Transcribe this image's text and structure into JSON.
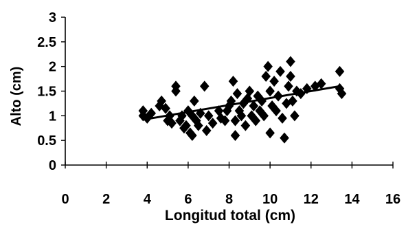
{
  "chart_data": {
    "type": "scatter",
    "title": "",
    "xlabel": "Longitud total (cm)",
    "ylabel": "Alto (cm)",
    "xlim": [
      0,
      16
    ],
    "ylim": [
      0,
      3
    ],
    "x_ticks": [
      0,
      2,
      4,
      6,
      8,
      10,
      12,
      14,
      16
    ],
    "y_ticks": [
      0,
      0.5,
      1,
      1.5,
      2,
      2.5,
      3
    ],
    "x_tick_labels": [
      "0",
      "2",
      "4",
      "6",
      "8",
      "10",
      "12",
      "14",
      "16"
    ],
    "y_tick_labels": [
      "0",
      "0.5",
      "1",
      "1.5",
      "2",
      "2.5",
      "3"
    ],
    "grid": false,
    "legend": "none",
    "marker": "diamond",
    "marker_color": "#000000",
    "trendline": {
      "x": [
        3.8,
        13.4
      ],
      "y": [
        0.92,
        1.6
      ]
    },
    "points": [
      [
        3.8,
        1.0
      ],
      [
        3.8,
        1.1
      ],
      [
        4.0,
        0.95
      ],
      [
        4.2,
        1.05
      ],
      [
        4.6,
        1.2
      ],
      [
        4.7,
        1.3
      ],
      [
        4.9,
        1.15
      ],
      [
        5.0,
        0.9
      ],
      [
        5.1,
        1.0
      ],
      [
        5.2,
        0.85
      ],
      [
        5.4,
        1.5
      ],
      [
        5.4,
        1.6
      ],
      [
        5.6,
        0.9
      ],
      [
        5.7,
        1.0
      ],
      [
        5.8,
        0.75
      ],
      [
        5.9,
        0.8
      ],
      [
        6.0,
        1.1
      ],
      [
        6.1,
        0.65
      ],
      [
        6.2,
        0.6
      ],
      [
        6.2,
        1.0
      ],
      [
        6.3,
        1.3
      ],
      [
        6.4,
        0.9
      ],
      [
        6.5,
        0.8
      ],
      [
        6.6,
        1.05
      ],
      [
        6.8,
        1.6
      ],
      [
        6.9,
        0.7
      ],
      [
        7.0,
        1.0
      ],
      [
        7.2,
        0.85
      ],
      [
        7.5,
        1.1
      ],
      [
        7.6,
        0.95
      ],
      [
        7.8,
        0.9
      ],
      [
        7.9,
        1.1
      ],
      [
        8.0,
        1.2
      ],
      [
        8.1,
        1.3
      ],
      [
        8.2,
        1.7
      ],
      [
        8.3,
        0.6
      ],
      [
        8.3,
        0.9
      ],
      [
        8.4,
        1.45
      ],
      [
        8.5,
        1.1
      ],
      [
        8.6,
        1.0
      ],
      [
        8.7,
        1.25
      ],
      [
        8.8,
        0.8
      ],
      [
        8.9,
        1.35
      ],
      [
        9.0,
        1.5
      ],
      [
        9.1,
        1.0
      ],
      [
        9.2,
        1.2
      ],
      [
        9.3,
        0.9
      ],
      [
        9.4,
        1.4
      ],
      [
        9.5,
        1.1
      ],
      [
        9.6,
        1.3
      ],
      [
        9.7,
        1.0
      ],
      [
        9.8,
        1.8
      ],
      [
        9.9,
        2.0
      ],
      [
        10.0,
        0.65
      ],
      [
        10.0,
        1.5
      ],
      [
        10.1,
        1.2
      ],
      [
        10.2,
        1.7
      ],
      [
        10.3,
        1.1
      ],
      [
        10.4,
        1.4
      ],
      [
        10.5,
        1.9
      ],
      [
        10.6,
        0.95
      ],
      [
        10.7,
        0.55
      ],
      [
        10.8,
        1.25
      ],
      [
        10.9,
        1.6
      ],
      [
        11.0,
        2.1
      ],
      [
        11.0,
        1.8
      ],
      [
        11.1,
        1.3
      ],
      [
        11.2,
        1.0
      ],
      [
        11.3,
        1.5
      ],
      [
        11.5,
        1.45
      ],
      [
        11.8,
        1.55
      ],
      [
        12.2,
        1.6
      ],
      [
        12.5,
        1.65
      ],
      [
        13.4,
        1.9
      ],
      [
        13.4,
        1.55
      ],
      [
        13.5,
        1.45
      ]
    ]
  }
}
